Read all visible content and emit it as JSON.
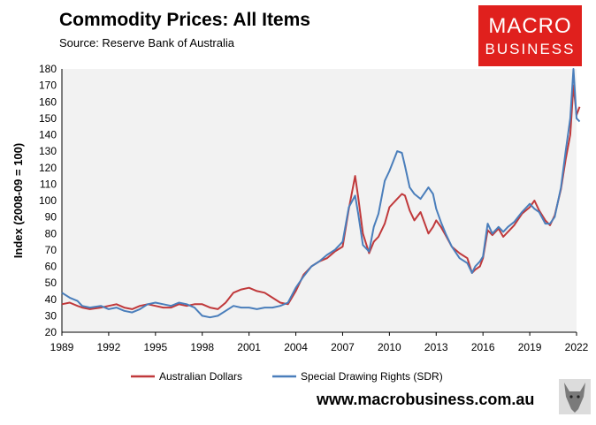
{
  "header": {
    "title": "Commodity Prices: All Items",
    "subtitle": "Source: Reserve Bank of Australia"
  },
  "logo": {
    "line1": "MACRO",
    "line2": "BUSINESS"
  },
  "footer": {
    "url": "www.macrobusiness.com.au"
  },
  "colors": {
    "aud": "#c0393b",
    "sdr": "#4a7ebb",
    "plot_bg": "#f2f2f2",
    "logo_bg": "#e0201d"
  },
  "chart_data": {
    "type": "line",
    "title": "Commodity Prices: All Items",
    "ylabel": "Index (2008-09 = 100)",
    "xlabel": "",
    "xlim": [
      1989,
      2022
    ],
    "ylim": [
      20,
      180
    ],
    "xticks": [
      "1989",
      "1992",
      "1995",
      "1998",
      "2001",
      "2004",
      "2007",
      "2010",
      "2013",
      "2016",
      "2019",
      "2022"
    ],
    "yticks": [
      "20",
      "30",
      "40",
      "50",
      "60",
      "70",
      "80",
      "90",
      "100",
      "110",
      "120",
      "130",
      "140",
      "150",
      "160",
      "170",
      "180"
    ],
    "grid": false,
    "legend_position": "bottom",
    "series": [
      {
        "name": "Australian Dollars",
        "color": "#c0393b",
        "x": [
          1989.0,
          1989.5,
          1990.0,
          1990.3,
          1990.8,
          1991.5,
          1992.0,
          1992.5,
          1993.0,
          1993.5,
          1994.0,
          1994.5,
          1995.0,
          1995.5,
          1996.0,
          1996.5,
          1997.0,
          1997.5,
          1998.0,
          1998.5,
          1999.0,
          1999.5,
          2000.0,
          2000.5,
          2001.0,
          2001.5,
          2002.0,
          2002.5,
          2003.0,
          2003.5,
          2004.0,
          2004.5,
          2005.0,
          2005.5,
          2006.0,
          2006.5,
          2007.0,
          2007.4,
          2007.8,
          2008.0,
          2008.3,
          2008.7,
          2009.0,
          2009.3,
          2009.7,
          2010.0,
          2010.5,
          2010.8,
          2011.0,
          2011.3,
          2011.6,
          2012.0,
          2012.5,
          2012.8,
          2013.0,
          2013.3,
          2013.6,
          2014.0,
          2014.5,
          2015.0,
          2015.3,
          2015.5,
          2015.8,
          2016.0,
          2016.3,
          2016.6,
          2017.0,
          2017.3,
          2017.6,
          2018.0,
          2018.5,
          2019.0,
          2019.3,
          2019.6,
          2020.0,
          2020.3,
          2020.6,
          2021.0,
          2021.3,
          2021.6,
          2021.8,
          2022.0,
          2022.2
        ],
        "values": [
          37,
          38,
          36,
          35,
          34,
          35,
          36,
          37,
          35,
          34,
          36,
          37,
          36,
          35,
          35,
          37,
          36,
          37,
          37,
          35,
          34,
          38,
          44,
          46,
          47,
          45,
          44,
          41,
          38,
          37,
          45,
          55,
          60,
          63,
          65,
          69,
          72,
          95,
          115,
          102,
          80,
          68,
          75,
          78,
          86,
          96,
          101,
          104,
          103,
          94,
          88,
          93,
          80,
          84,
          88,
          84,
          79,
          72,
          68,
          65,
          56,
          58,
          60,
          65,
          82,
          79,
          83,
          78,
          81,
          85,
          92,
          96,
          100,
          94,
          88,
          85,
          91,
          107,
          125,
          140,
          170,
          152,
          157
        ]
      },
      {
        "name": "Special Drawing Rights (SDR)",
        "color": "#4a7ebb",
        "x": [
          1989.0,
          1989.5,
          1990.0,
          1990.3,
          1990.8,
          1991.5,
          1992.0,
          1992.5,
          1993.0,
          1993.5,
          1994.0,
          1994.5,
          1995.0,
          1995.5,
          1996.0,
          1996.5,
          1997.0,
          1997.5,
          1998.0,
          1998.5,
          1999.0,
          1999.5,
          2000.0,
          2000.5,
          2001.0,
          2001.5,
          2002.0,
          2002.5,
          2003.0,
          2003.5,
          2004.0,
          2004.5,
          2005.0,
          2005.5,
          2006.0,
          2006.5,
          2007.0,
          2007.4,
          2007.8,
          2008.0,
          2008.3,
          2008.7,
          2009.0,
          2009.3,
          2009.7,
          2010.0,
          2010.5,
          2010.8,
          2011.0,
          2011.3,
          2011.6,
          2012.0,
          2012.5,
          2012.8,
          2013.0,
          2013.3,
          2013.6,
          2014.0,
          2014.5,
          2015.0,
          2015.3,
          2015.5,
          2015.8,
          2016.0,
          2016.3,
          2016.6,
          2017.0,
          2017.3,
          2017.6,
          2018.0,
          2018.5,
          2019.0,
          2019.3,
          2019.6,
          2020.0,
          2020.3,
          2020.6,
          2021.0,
          2021.3,
          2021.6,
          2021.8,
          2022.0,
          2022.2
        ],
        "values": [
          44,
          41,
          39,
          36,
          35,
          36,
          34,
          35,
          33,
          32,
          34,
          37,
          38,
          37,
          36,
          38,
          37,
          35,
          30,
          29,
          30,
          33,
          36,
          35,
          35,
          34,
          35,
          35,
          36,
          38,
          47,
          54,
          60,
          63,
          67,
          70,
          75,
          96,
          103,
          92,
          73,
          69,
          84,
          92,
          112,
          118,
          130,
          129,
          121,
          108,
          104,
          101,
          108,
          104,
          95,
          87,
          80,
          72,
          65,
          62,
          56,
          60,
          63,
          66,
          86,
          80,
          84,
          81,
          84,
          87,
          93,
          98,
          95,
          93,
          86,
          86,
          90,
          108,
          130,
          150,
          180,
          150,
          148
        ]
      }
    ]
  }
}
